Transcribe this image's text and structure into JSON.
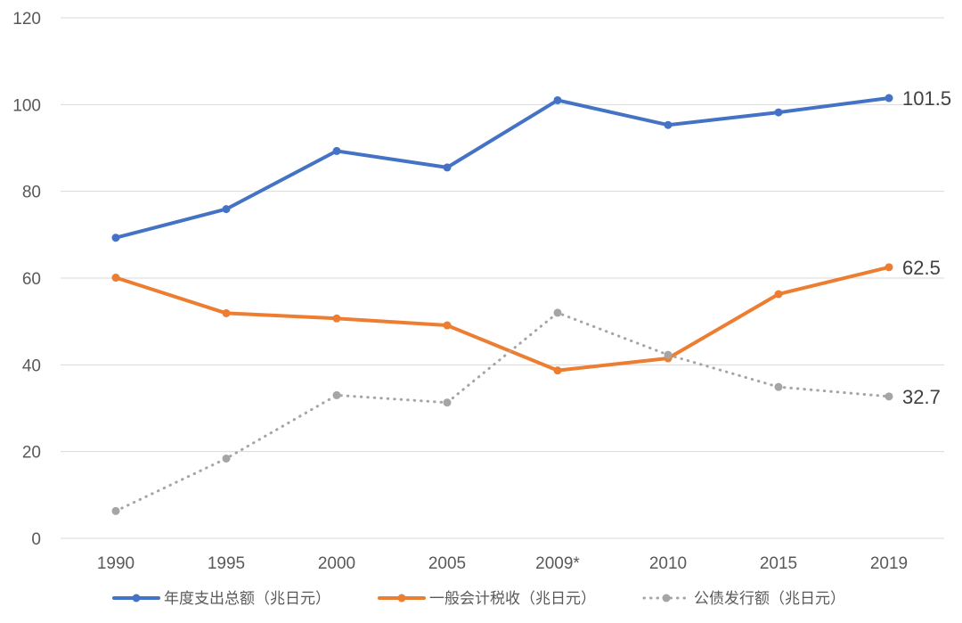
{
  "chart_data": {
    "type": "line",
    "categories": [
      "1990",
      "1995",
      "2000",
      "2005",
      "2009*",
      "2010",
      "2015",
      "2019"
    ],
    "ylim": [
      0,
      120
    ],
    "yticks": [
      0,
      20,
      40,
      60,
      80,
      100,
      120
    ],
    "grid": true,
    "legend_position": "bottom",
    "series": [
      {
        "name": "年度支出总额（兆日元）",
        "color": "#4472C4",
        "style": "solid",
        "values": [
          69.3,
          75.9,
          89.3,
          85.5,
          101.0,
          95.3,
          98.2,
          101.5
        ],
        "end_label": "101.5"
      },
      {
        "name": "一般会计税收（兆日元）",
        "color": "#ED7D31",
        "style": "solid",
        "values": [
          60.1,
          51.9,
          50.7,
          49.1,
          38.7,
          41.5,
          56.3,
          62.5
        ],
        "end_label": "62.5"
      },
      {
        "name": "公债发行额（兆日元）",
        "color": "#A5A5A5",
        "style": "dotted",
        "values": [
          6.3,
          18.4,
          33.0,
          31.3,
          52.0,
          42.3,
          34.9,
          32.7
        ],
        "end_label": "32.7"
      }
    ]
  }
}
